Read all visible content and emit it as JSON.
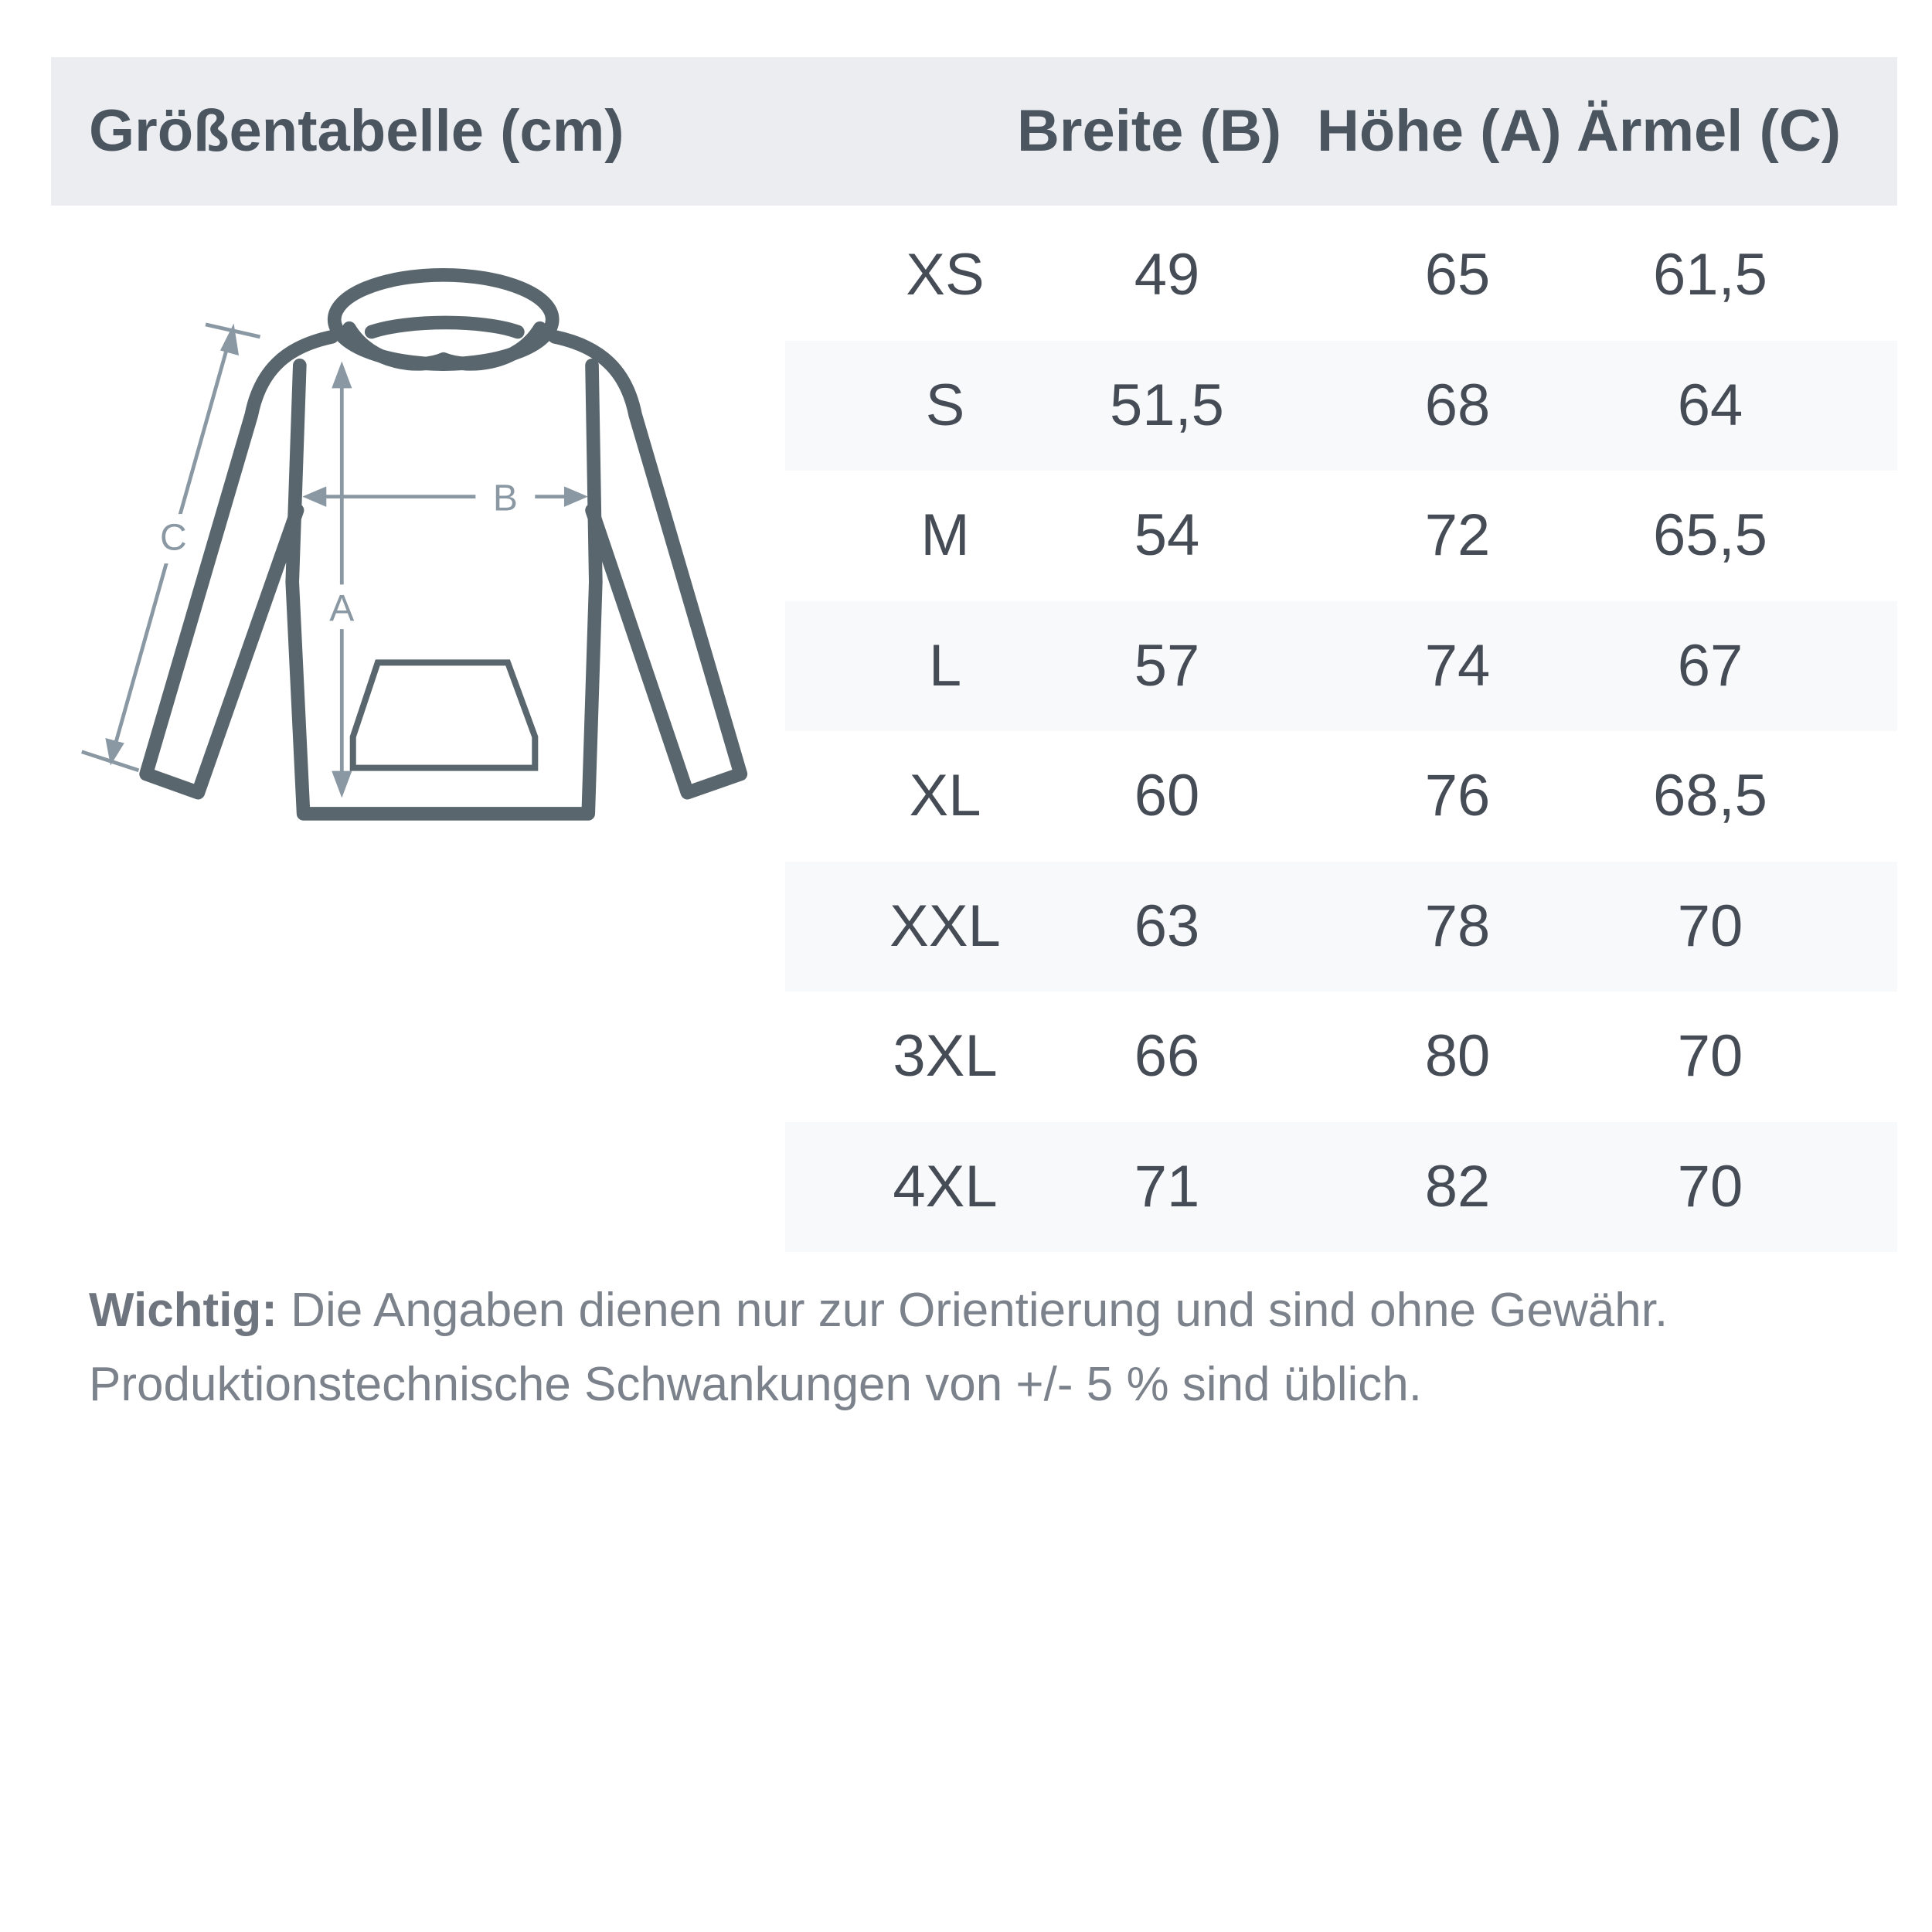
{
  "header": {
    "title": "Größentabelle (cm)",
    "columns": [
      "Breite (B)",
      "Höhe (A)",
      "Ärmel (C)"
    ]
  },
  "rows": [
    {
      "size": "XS",
      "breite": "49",
      "hoehe": "65",
      "aermel": "61,5"
    },
    {
      "size": "S",
      "breite": "51,5",
      "hoehe": "68",
      "aermel": "64"
    },
    {
      "size": "M",
      "breite": "54",
      "hoehe": "72",
      "aermel": "65,5"
    },
    {
      "size": "L",
      "breite": "57",
      "hoehe": "74",
      "aermel": "67"
    },
    {
      "size": "XL",
      "breite": "60",
      "hoehe": "76",
      "aermel": "68,5"
    },
    {
      "size": "XXL",
      "breite": "63",
      "hoehe": "78",
      "aermel": "70"
    },
    {
      "size": "3XL",
      "breite": "66",
      "hoehe": "80",
      "aermel": "70"
    },
    {
      "size": "4XL",
      "breite": "71",
      "hoehe": "82",
      "aermel": "70"
    }
  ],
  "diagram": {
    "label_a": "A",
    "label_b": "B",
    "label_c": "C",
    "outline_color": "#59666d",
    "arrow_color": "#8a98a3"
  },
  "note": {
    "label": "Wichtig:",
    "line1": " Die Angaben dienen nur zur Orientierung und sind ohne Gewähr.",
    "line2": "Produktionstechnische Schwankungen von +/- 5 % sind üblich."
  }
}
